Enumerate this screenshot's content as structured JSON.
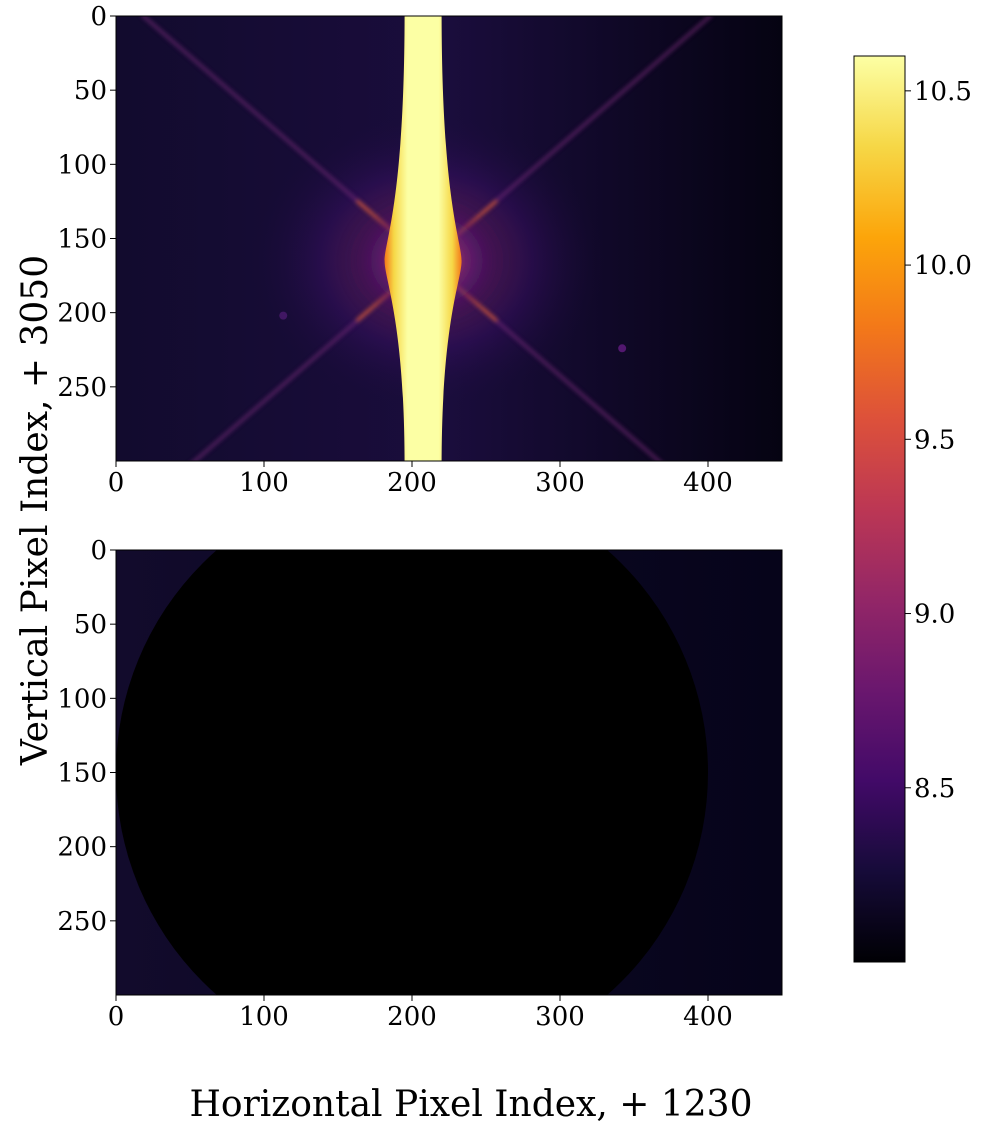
{
  "chart_data": {
    "type": "heatmap",
    "xlabel": "Horizontal Pixel Index, + 1230",
    "ylabel": "Vertical Pixel Index, + 3050",
    "colormap": "inferno",
    "panels": [
      {
        "id": "top",
        "description_value": "bright vertical saturated streak centered near x=210 with diffraction spikes and halo",
        "xlim": [
          0,
          450
        ],
        "ylim": [
          300,
          0
        ],
        "xticks": [
          0,
          100,
          200,
          300,
          400
        ],
        "yticks": [
          0,
          50,
          100,
          150,
          200,
          250
        ],
        "source_center": [
          210,
          165
        ],
        "streak_x_range": [
          195,
          220
        ],
        "background_level": 8.15,
        "peak_level": 10.6
      },
      {
        "id": "bottom",
        "xlim": [
          0,
          450
        ],
        "ylim": [
          300,
          0
        ],
        "xticks": [
          0,
          100,
          200,
          300,
          400
        ],
        "yticks": [
          0,
          50,
          100,
          150,
          200,
          250
        ],
        "mask_center": [
          200,
          150
        ],
        "mask_radius": 200,
        "mask_level": 8.0,
        "background_level": 8.15
      }
    ],
    "colorbar": {
      "range": [
        8.0,
        10.6
      ],
      "ticks": [
        8.5,
        9.0,
        9.5,
        10.0,
        10.5
      ],
      "tick_labels": [
        "8.5",
        "9.0",
        "9.5",
        "10.0",
        "10.5"
      ]
    }
  },
  "colors": {
    "background": "#ffffff",
    "dark": "#07061a",
    "saturated": "#fcffa4"
  }
}
